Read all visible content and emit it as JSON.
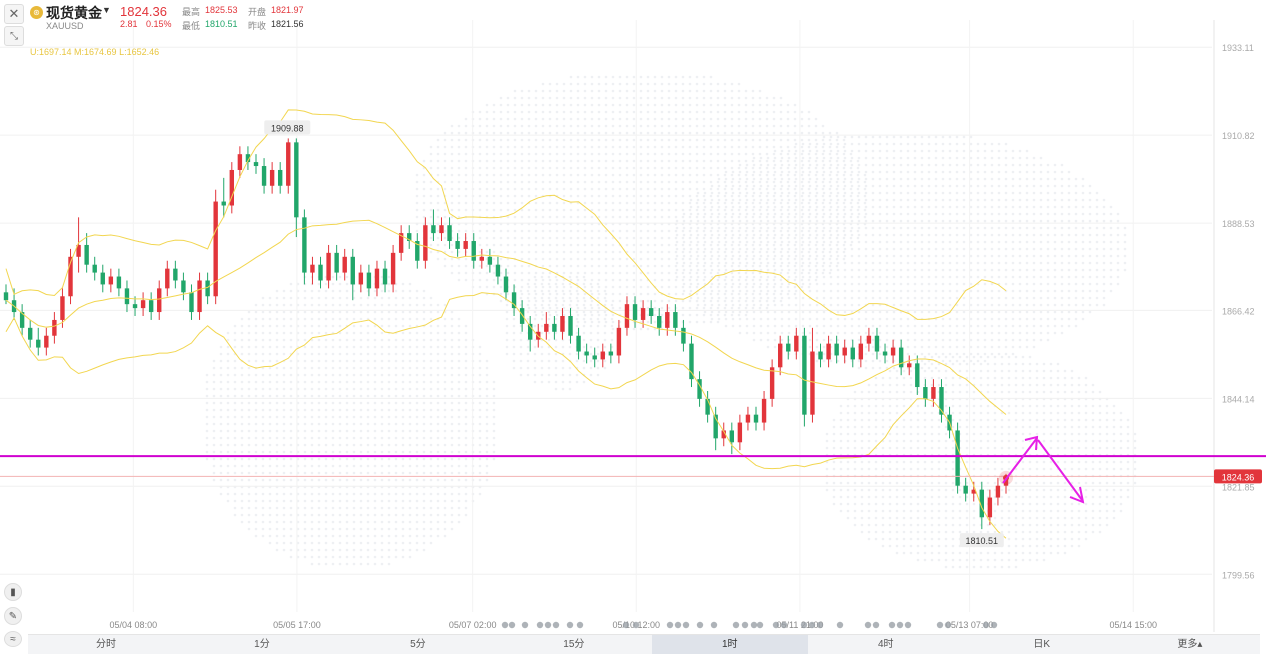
{
  "header": {
    "name": "现货黄金",
    "code": "XAUUSD",
    "price": "1824.36",
    "change": "2.81",
    "change_pct": "0.15%",
    "high_label": "最高",
    "high": "1825.53",
    "open_label": "开盘",
    "open": "1821.97",
    "low_label": "最低",
    "low": "1810.51",
    "prev_label": "昨收",
    "prev": "1821.56"
  },
  "indicator_line": "U:1697.14  M:1674.69  L:1652.46",
  "chart_data": {
    "type": "candlestick",
    "y_ticks": [
      "1933.11",
      "1910.82",
      "1888.53",
      "1866.42",
      "1844.14",
      "1821.85",
      "1799.56"
    ],
    "ylim": [
      1790,
      1940
    ],
    "x_ticks": [
      "05/04 08:00",
      "05/05 17:00",
      "05/07 02:00",
      "05/10 12:00",
      "05/11 21:00",
      "05/13 07:00",
      "05/14 15:00"
    ],
    "current_price_tag": "1824.36",
    "high_marker": "1909.88",
    "low_marker": "1810.51",
    "support_line": 1829.5,
    "candles": [
      [
        1871,
        1869,
        1873,
        1868
      ],
      [
        1869,
        1866,
        1872,
        1864
      ],
      [
        1866,
        1862,
        1868,
        1860
      ],
      [
        1862,
        1859,
        1864,
        1857
      ],
      [
        1859,
        1857,
        1862,
        1855
      ],
      [
        1857,
        1860,
        1862,
        1855
      ],
      [
        1860,
        1864,
        1866,
        1858
      ],
      [
        1864,
        1870,
        1872,
        1862
      ],
      [
        1870,
        1880,
        1882,
        1868
      ],
      [
        1880,
        1883,
        1890,
        1876
      ],
      [
        1883,
        1878,
        1886,
        1876
      ],
      [
        1878,
        1876,
        1880,
        1874
      ],
      [
        1876,
        1873,
        1878,
        1871
      ],
      [
        1873,
        1875,
        1877,
        1871
      ],
      [
        1875,
        1872,
        1877,
        1870
      ],
      [
        1872,
        1868,
        1874,
        1866
      ],
      [
        1868,
        1867,
        1870,
        1865
      ],
      [
        1867,
        1869,
        1871,
        1865
      ],
      [
        1869,
        1866,
        1871,
        1864
      ],
      [
        1866,
        1872,
        1874,
        1864
      ],
      [
        1872,
        1877,
        1879,
        1870
      ],
      [
        1877,
        1874,
        1879,
        1872
      ],
      [
        1874,
        1871,
        1876,
        1869
      ],
      [
        1871,
        1866,
        1873,
        1864
      ],
      [
        1866,
        1874,
        1876,
        1864
      ],
      [
        1874,
        1870,
        1876,
        1868
      ],
      [
        1870,
        1894,
        1897,
        1868
      ],
      [
        1894,
        1893,
        1900,
        1890
      ],
      [
        1893,
        1902,
        1904,
        1891
      ],
      [
        1902,
        1906,
        1908,
        1900
      ],
      [
        1906,
        1904,
        1908,
        1902
      ],
      [
        1904,
        1903,
        1906,
        1901
      ],
      [
        1903,
        1898,
        1905,
        1896
      ],
      [
        1898,
        1902,
        1904,
        1896
      ],
      [
        1902,
        1898,
        1904,
        1896
      ],
      [
        1898,
        1909,
        1910,
        1896
      ],
      [
        1909,
        1890,
        1910,
        1885
      ],
      [
        1890,
        1876,
        1892,
        1873
      ],
      [
        1876,
        1878,
        1880,
        1873
      ],
      [
        1878,
        1874,
        1880,
        1872
      ],
      [
        1874,
        1881,
        1883,
        1872
      ],
      [
        1881,
        1876,
        1883,
        1874
      ],
      [
        1876,
        1880,
        1882,
        1874
      ],
      [
        1880,
        1873,
        1882,
        1869
      ],
      [
        1873,
        1876,
        1878,
        1871
      ],
      [
        1876,
        1872,
        1878,
        1870
      ],
      [
        1872,
        1877,
        1879,
        1870
      ],
      [
        1877,
        1873,
        1879,
        1871
      ],
      [
        1873,
        1881,
        1883,
        1871
      ],
      [
        1881,
        1886,
        1888,
        1879
      ],
      [
        1886,
        1884,
        1888,
        1882
      ],
      [
        1884,
        1879,
        1886,
        1877
      ],
      [
        1879,
        1888,
        1890,
        1877
      ],
      [
        1888,
        1886,
        1892,
        1884
      ],
      [
        1886,
        1888,
        1890,
        1884
      ],
      [
        1888,
        1884,
        1890,
        1882
      ],
      [
        1884,
        1882,
        1886,
        1880
      ],
      [
        1882,
        1884,
        1886,
        1880
      ],
      [
        1884,
        1879,
        1886,
        1877
      ],
      [
        1879,
        1880,
        1882,
        1877
      ],
      [
        1880,
        1878,
        1882,
        1876
      ],
      [
        1878,
        1875,
        1880,
        1873
      ],
      [
        1875,
        1871,
        1877,
        1869
      ],
      [
        1871,
        1867,
        1873,
        1865
      ],
      [
        1867,
        1863,
        1869,
        1861
      ],
      [
        1863,
        1859,
        1865,
        1856
      ],
      [
        1859,
        1861,
        1863,
        1857
      ],
      [
        1861,
        1863,
        1866,
        1859
      ],
      [
        1863,
        1861,
        1865,
        1859
      ],
      [
        1861,
        1865,
        1867,
        1859
      ],
      [
        1865,
        1860,
        1867,
        1858
      ],
      [
        1860,
        1856,
        1862,
        1854
      ],
      [
        1856,
        1855,
        1858,
        1853
      ],
      [
        1855,
        1854,
        1857,
        1852
      ],
      [
        1854,
        1856,
        1858,
        1852
      ],
      [
        1856,
        1855,
        1858,
        1853
      ],
      [
        1855,
        1862,
        1864,
        1853
      ],
      [
        1862,
        1868,
        1870,
        1860
      ],
      [
        1868,
        1864,
        1870,
        1862
      ],
      [
        1864,
        1867,
        1869,
        1862
      ],
      [
        1867,
        1865,
        1869,
        1863
      ],
      [
        1865,
        1862,
        1867,
        1860
      ],
      [
        1862,
        1866,
        1868,
        1860
      ],
      [
        1866,
        1862,
        1868,
        1860
      ],
      [
        1862,
        1858,
        1864,
        1856
      ],
      [
        1858,
        1849,
        1860,
        1847
      ],
      [
        1849,
        1844,
        1851,
        1842
      ],
      [
        1844,
        1840,
        1846,
        1838
      ],
      [
        1840,
        1834,
        1842,
        1831
      ],
      [
        1834,
        1836,
        1838,
        1832
      ],
      [
        1836,
        1833,
        1838,
        1830
      ],
      [
        1833,
        1838,
        1840,
        1831
      ],
      [
        1838,
        1840,
        1842,
        1836
      ],
      [
        1840,
        1838,
        1842,
        1836
      ],
      [
        1838,
        1844,
        1846,
        1836
      ],
      [
        1844,
        1852,
        1854,
        1842
      ],
      [
        1852,
        1858,
        1860,
        1850
      ],
      [
        1858,
        1856,
        1860,
        1854
      ],
      [
        1856,
        1860,
        1862,
        1854
      ],
      [
        1860,
        1840,
        1862,
        1837
      ],
      [
        1840,
        1856,
        1862,
        1838
      ],
      [
        1856,
        1854,
        1858,
        1852
      ],
      [
        1854,
        1858,
        1860,
        1852
      ],
      [
        1858,
        1855,
        1860,
        1853
      ],
      [
        1855,
        1857,
        1859,
        1853
      ],
      [
        1857,
        1854,
        1859,
        1852
      ],
      [
        1854,
        1858,
        1860,
        1852
      ],
      [
        1858,
        1860,
        1862,
        1856
      ],
      [
        1860,
        1856,
        1862,
        1854
      ],
      [
        1856,
        1855,
        1858,
        1853
      ],
      [
        1855,
        1857,
        1859,
        1853
      ],
      [
        1857,
        1852,
        1859,
        1850
      ],
      [
        1852,
        1853,
        1855,
        1850
      ],
      [
        1853,
        1847,
        1855,
        1845
      ],
      [
        1847,
        1844,
        1849,
        1842
      ],
      [
        1844,
        1847,
        1849,
        1842
      ],
      [
        1847,
        1840,
        1849,
        1838
      ],
      [
        1840,
        1836,
        1842,
        1834
      ],
      [
        1836,
        1822,
        1838,
        1820
      ],
      [
        1822,
        1820,
        1824,
        1818
      ],
      [
        1820,
        1821,
        1823,
        1818
      ],
      [
        1821,
        1814,
        1823,
        1811
      ],
      [
        1814,
        1819,
        1821,
        1812
      ],
      [
        1819,
        1822,
        1824,
        1817
      ],
      [
        1822,
        1824,
        1825,
        1820
      ]
    ]
  },
  "timeframes": [
    "分时",
    "1分",
    "5分",
    "15分",
    "1时",
    "4时",
    "日K",
    "更多▴"
  ],
  "active_timeframe": "1时",
  "colors": {
    "up": "#e2353b",
    "down": "#21a66a",
    "boll": "#f2d650",
    "support": "#d000d0",
    "arrow": "#e620e6",
    "price_tag": "#e2353b"
  }
}
